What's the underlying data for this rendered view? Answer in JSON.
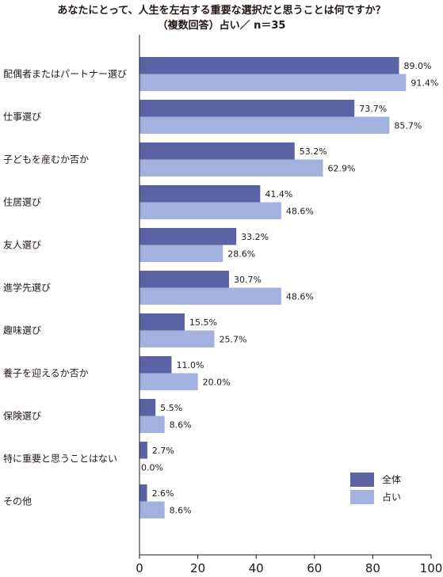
{
  "chart_data": {
    "type": "bar",
    "orientation": "horizontal",
    "title_line1": "あなたにとって、人生を左右する重要な選択だと思うことは何ですか？",
    "title_line2": "（複数回答）占い／ n＝35",
    "categories": [
      "配偶者またはパートナー選び",
      "仕事選び",
      "子どもを産むか否か",
      "住居選び",
      "友人選び",
      "進学先選び",
      "趣味選び",
      "養子を迎えるか否か",
      "保険選び",
      "特に重要と思うことはない",
      "その他"
    ],
    "series": [
      {
        "name": "全体",
        "color": "#5c63a4",
        "values": [
          89.0,
          73.7,
          53.2,
          41.4,
          33.2,
          30.7,
          15.5,
          11.0,
          5.5,
          2.7,
          2.6
        ],
        "labels": [
          "89.0%",
          "73.7%",
          "53.2%",
          "41.4%",
          "33.2%",
          "30.7%",
          "15.5%",
          "11.0%",
          "5.5%",
          "2.7%",
          "2.6%"
        ]
      },
      {
        "name": "占い",
        "color": "#a2b1dd",
        "values": [
          91.4,
          85.7,
          62.9,
          48.6,
          28.6,
          48.6,
          25.7,
          20.0,
          8.6,
          0.0,
          8.6
        ],
        "labels": [
          "91.4%",
          "85.7%",
          "62.9%",
          "48.6%",
          "28.6%",
          "48.6%",
          "25.7%",
          "20.0%",
          "8.6%",
          "0.0%",
          "8.6%"
        ]
      }
    ],
    "xlim": [
      0,
      100
    ],
    "xticks": [
      "0",
      "20",
      "40",
      "60",
      "80",
      "100"
    ],
    "grid": false,
    "legend_position": "bottom-right"
  }
}
